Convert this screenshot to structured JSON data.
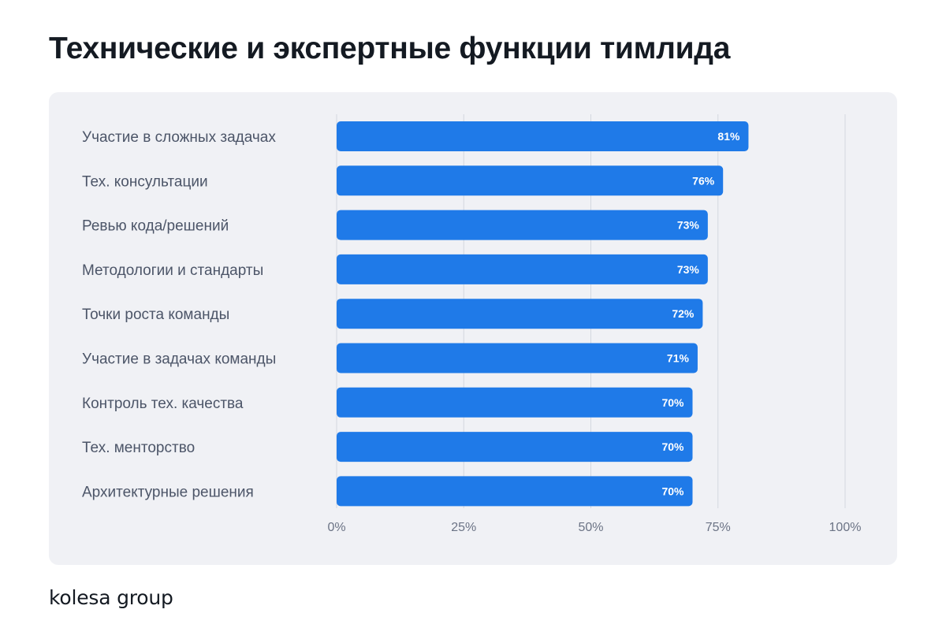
{
  "title": "Технические и экспертные функции тимлида",
  "brand": "kolesa group",
  "colors": {
    "bar": "#1f7ae8",
    "panel": "#f0f1f5",
    "gridline": "#d3d7df",
    "title": "#141a22"
  },
  "chart_data": {
    "type": "bar",
    "orientation": "horizontal",
    "categories": [
      "Участие в сложных задачах",
      "Тех. консультации",
      "Ревью кода/решений",
      "Методологии и стандарты",
      "Точки роста команды",
      "Участие в задачах команды",
      "Контроль тех. качества",
      "Тех. менторство",
      "Архитектурные решения"
    ],
    "values": [
      81,
      76,
      73,
      73,
      72,
      71,
      70,
      70,
      70
    ],
    "value_labels": [
      "81%",
      "76%",
      "73%",
      "73%",
      "72%",
      "71%",
      "70%",
      "70%",
      "70%"
    ],
    "xlim": [
      0,
      100
    ],
    "xticks": [
      0,
      25,
      50,
      75,
      100
    ],
    "xtick_labels": [
      "0%",
      "25%",
      "50%",
      "75%",
      "100%"
    ],
    "grid": true,
    "legend": "none"
  }
}
